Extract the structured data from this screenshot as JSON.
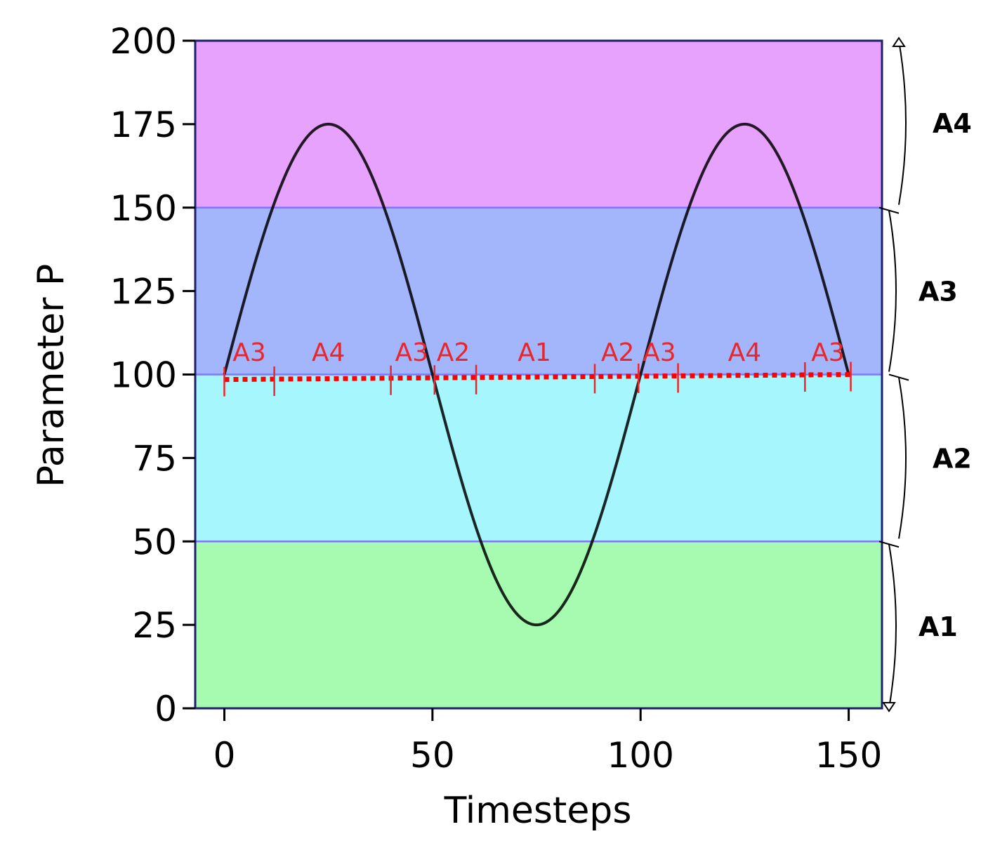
{
  "chart_data": {
    "type": "line",
    "xlabel": "Timesteps",
    "ylabel": "Parameter P",
    "xlim": [
      -7,
      158
    ],
    "ylim": [
      0,
      200
    ],
    "xticks": [
      0,
      50,
      100,
      150
    ],
    "yticks": [
      0,
      25,
      50,
      75,
      100,
      125,
      150,
      175,
      200
    ],
    "grid": false,
    "series": [
      {
        "function": "100 + 75*sin(2*pi*t/100)",
        "x_range": [
          0,
          150
        ],
        "color": "#000000",
        "points": [
          [
            0,
            100
          ],
          [
            25,
            175
          ],
          [
            50,
            100
          ],
          [
            75,
            25
          ],
          [
            100,
            100
          ],
          [
            125,
            175
          ],
          [
            150,
            100
          ]
        ]
      }
    ],
    "bands": [
      {
        "label": "A1",
        "range": [
          0,
          50
        ],
        "color": "#a6fbb0"
      },
      {
        "label": "A2",
        "range": [
          50,
          100
        ],
        "color": "#a6f7fd"
      },
      {
        "label": "A3",
        "range": [
          100,
          150
        ],
        "color": "#a4b6fb"
      },
      {
        "label": "A4",
        "range": [
          150,
          200
        ],
        "color": "#e6a2fd"
      }
    ],
    "segment_line": {
      "color": "#ff0000",
      "style": "dotted",
      "y_start": 98.5,
      "y_end": 100,
      "boundaries": [
        0,
        12,
        40,
        50.5,
        60.5,
        89,
        99.5,
        109,
        139.5,
        150.5
      ],
      "segments": [
        {
          "label": "A3",
          "center": 6
        },
        {
          "label": "A4",
          "center": 25
        },
        {
          "label": "A3",
          "center": 45
        },
        {
          "label": "A2",
          "center": 55
        },
        {
          "label": "A1",
          "center": 74.5
        },
        {
          "label": "A2",
          "center": 94.5
        },
        {
          "label": "A3",
          "center": 104.5
        },
        {
          "label": "A4",
          "center": 125
        },
        {
          "label": "A3",
          "center": 145
        }
      ]
    }
  }
}
